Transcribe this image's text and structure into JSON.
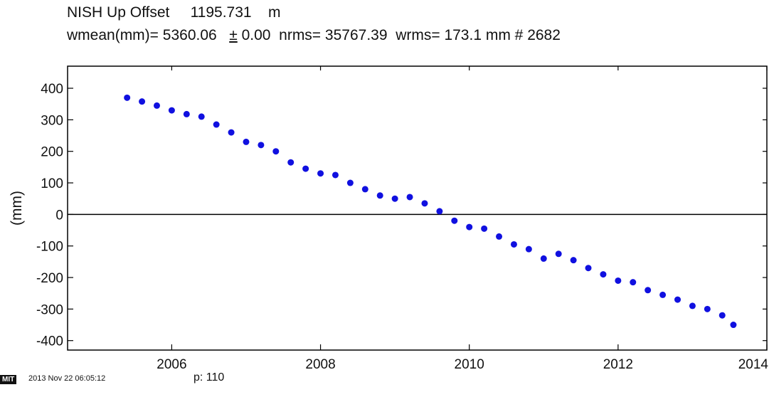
{
  "header": {
    "line1": {
      "station": "NISH",
      "component": "Up",
      "kind": "Offset",
      "offset": "1195.731",
      "unit": "m"
    },
    "line2": {
      "wmean_label": "wmean(mm)=",
      "wmean": "5360.06",
      "pm": "±",
      "uncertainty": "0.00",
      "nrms_label": "nrms=",
      "nrms": "35767.39",
      "wrms_label": "wrms=",
      "wrms": "173.1 mm",
      "count_label": "#",
      "count": "2682"
    }
  },
  "footer": {
    "badge": "MIT",
    "timestamp": "2013 Nov 22 06:05:12",
    "page": "p: 110"
  },
  "chart_data": {
    "type": "scatter",
    "title": "",
    "xlabel": "",
    "ylabel": "(mm)",
    "xlim": [
      2004.6,
      2014.0
    ],
    "ylim": [
      -430,
      470
    ],
    "xticks": [
      2006,
      2008,
      2010,
      2012,
      2014
    ],
    "yticks": [
      400,
      300,
      200,
      100,
      0,
      -100,
      -200,
      -300,
      -400
    ],
    "ytick_labels": [
      "400",
      "300",
      "200",
      "100",
      "0",
      "-100",
      "-200",
      "-300",
      "-400"
    ],
    "zero_line": true,
    "grid": false,
    "marker_color": "#1010e0",
    "series": [
      {
        "name": "",
        "x": [
          2005.4,
          2005.6,
          2005.8,
          2006.0,
          2006.2,
          2006.4,
          2006.6,
          2006.8,
          2007.0,
          2007.2,
          2007.4,
          2007.6,
          2007.8,
          2008.0,
          2008.2,
          2008.4,
          2008.6,
          2008.8,
          2009.0,
          2009.2,
          2009.4,
          2009.6,
          2009.8,
          2010.0,
          2010.2,
          2010.4,
          2010.6,
          2010.8,
          2011.0,
          2011.2,
          2011.4,
          2011.6,
          2011.8,
          2012.0,
          2012.2,
          2012.4,
          2012.6,
          2012.8,
          2013.0,
          2013.2,
          2013.4,
          2013.55
        ],
        "y": [
          370,
          358,
          345,
          330,
          318,
          310,
          285,
          260,
          230,
          220,
          200,
          165,
          145,
          130,
          125,
          100,
          80,
          60,
          50,
          55,
          35,
          10,
          -20,
          -40,
          -45,
          -70,
          -95,
          -110,
          -140,
          -125,
          -145,
          -170,
          -190,
          -210,
          -215,
          -240,
          -255,
          -270,
          -290,
          -300,
          -320,
          -350
        ]
      }
    ]
  }
}
